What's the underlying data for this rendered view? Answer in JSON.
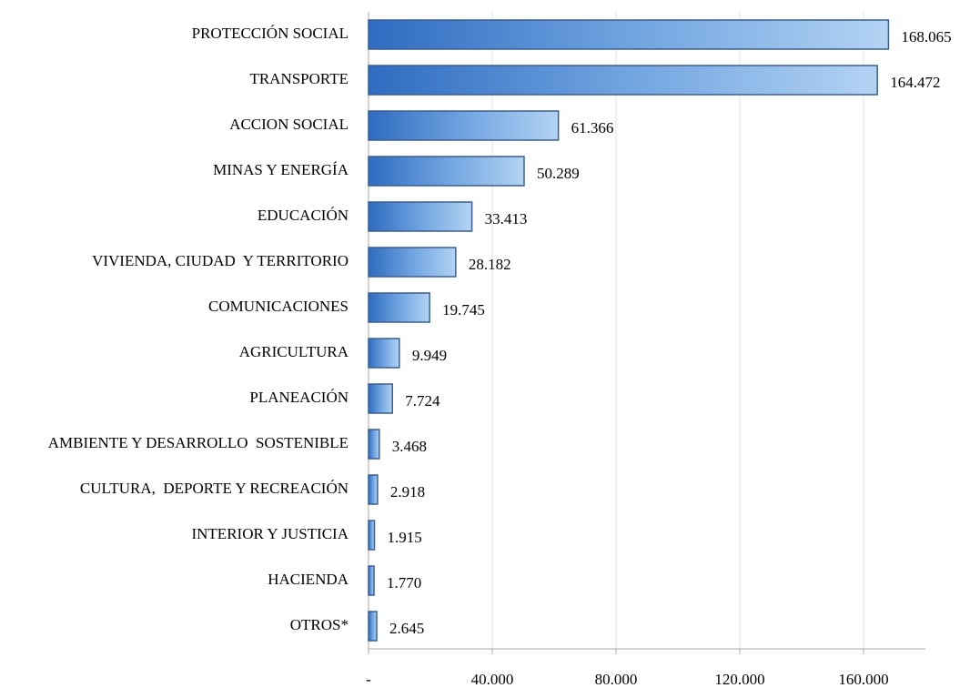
{
  "chart_data": {
    "type": "bar",
    "orientation": "horizontal",
    "categories": [
      "PROTECCIÓN SOCIAL",
      "TRANSPORTE",
      "ACCION SOCIAL",
      "MINAS Y ENERGÍA",
      "EDUCACIÓN",
      "VIVIENDA, CIUDAD  Y TERRITORIO",
      "COMUNICACIONES",
      "AGRICULTURA",
      "PLANEACIÓN",
      "AMBIENTE Y DESARROLLO  SOSTENIBLE",
      "CULTURA,  DEPORTE Y RECREACIÓN",
      "INTERIOR Y JUSTICIA",
      "HACIENDA",
      "OTROS*"
    ],
    "values": [
      168065,
      164472,
      61366,
      50289,
      33413,
      28182,
      19745,
      9949,
      7724,
      3468,
      2918,
      1915,
      1770,
      2645
    ],
    "value_labels": [
      "168.065",
      "164.472",
      "61.366",
      "50.289",
      "33.413",
      "28.182",
      "19.745",
      "9.949",
      "7.724",
      "3.468",
      "2.918",
      "1.915",
      "1.770",
      "2.645"
    ],
    "color": "#4a86d0",
    "xlim": [
      0,
      180000
    ],
    "xticks": [
      {
        "value": 0,
        "label": "-"
      },
      {
        "value": 40000,
        "label": "40.000"
      },
      {
        "value": 80000,
        "label": "80.000"
      },
      {
        "value": 120000,
        "label": "120.000"
      },
      {
        "value": 160000,
        "label": "160.000"
      }
    ],
    "grid": true
  }
}
